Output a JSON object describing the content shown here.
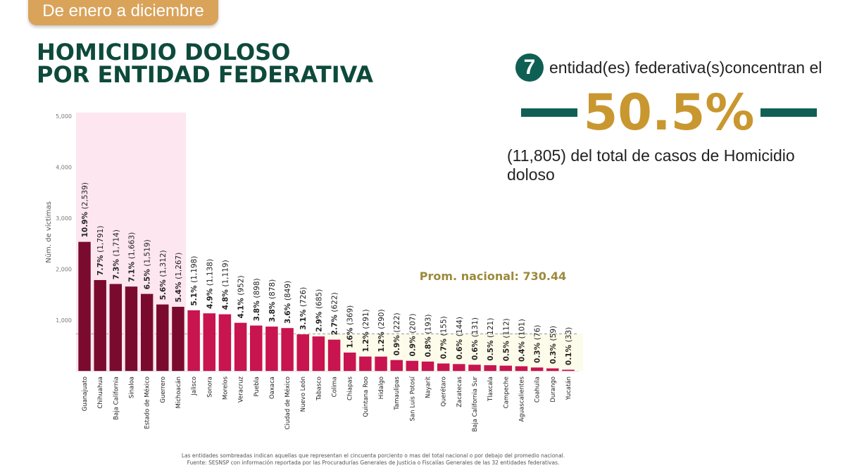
{
  "header": {
    "period": "De enero a diciembre",
    "title_line1": "HOMICIDIO DOLOSO",
    "title_line2": "POR ENTIDAD FEDERATIVA"
  },
  "summary": {
    "count": "7",
    "line1": "entidad(es) federativa(s)concentran el",
    "percent": "50.5%",
    "line3": "(11,805) del total de casos de Homicidio doloso"
  },
  "footnote": {
    "line1": "Las entidades sombreadas indican aquellas que representan el cincuenta porciento o mas del total nacional o por debajo del promedio nacional.",
    "line2": "Fuente: SESNSP con información reportada por las Procuradurías Generales de Justicia o Fiscalías Generales de las 32 entidades federativas."
  },
  "colors": {
    "top": "#7a0b2f",
    "rest": "#c8144f",
    "green": "#0e4a3b",
    "gold": "#c9972f",
    "top_shade": "#fde6f0",
    "below_avg_shade": "#fdfbea"
  },
  "chart_data": {
    "type": "bar",
    "ylabel": "Núm. de víctimas",
    "ylim": [
      0,
      5000
    ],
    "yticks": [
      "1,000",
      "2,000",
      "3,000",
      "4,000",
      "5,000"
    ],
    "average": {
      "label": "Prom. nacional: 730.44",
      "value": 730.44
    },
    "highlight_top_count": 7,
    "categories": [
      "Guanajuato",
      "Chihuahua",
      "Baja California",
      "Sinaloa",
      "Estado de México",
      "Guerrero",
      "Michoacán",
      "Jalisco",
      "Sonora",
      "Morelos",
      "Veracruz",
      "Puebla",
      "Oaxaca",
      "Ciudad de México",
      "Nuevo León",
      "Tabasco",
      "Colima",
      "Chiapas",
      "Quintana Roo",
      "Hidalgo",
      "Tamaulipas",
      "San Luis Potosí",
      "Nayarit",
      "Querétaro",
      "Zacatecas",
      "Baja California Sur",
      "Tlaxcala",
      "Campeche",
      "Aguascalientes",
      "Coahuila",
      "Durango",
      "Yucatán"
    ],
    "values": [
      2539,
      1791,
      1714,
      1663,
      1519,
      1312,
      1267,
      1198,
      1138,
      1119,
      952,
      898,
      878,
      849,
      726,
      685,
      622,
      369,
      291,
      290,
      222,
      207,
      193,
      155,
      144,
      131,
      121,
      112,
      101,
      76,
      59,
      33
    ],
    "percent_labels": [
      "10.9%",
      "7.7%",
      "7.3%",
      "7.1%",
      "6.5%",
      "5.6%",
      "5.4%",
      "5.1%",
      "4.9%",
      "4.8%",
      "4.1%",
      "3.8%",
      "3.8%",
      "3.6%",
      "3.1%",
      "2.9%",
      "2.7%",
      "1.6%",
      "1.2%",
      "1.2%",
      "0.9%",
      "0.9%",
      "0.8%",
      "0.7%",
      "0.6%",
      "0.6%",
      "0.5%",
      "0.5%",
      "0.4%",
      "0.3%",
      "0.3%",
      "0.1%"
    ],
    "count_labels": [
      "(2,539)",
      "(1,791)",
      "(1,714)",
      "(1,663)",
      "(1,519)",
      "(1,312)",
      "(1,267)",
      "(1,198)",
      "(1,138)",
      "(1,119)",
      "(952)",
      "(898)",
      "(878)",
      "(849)",
      "(726)",
      "(685)",
      "(622)",
      "(369)",
      "(291)",
      "(290)",
      "(222)",
      "(207)",
      "(193)",
      "(155)",
      "(144)",
      "(131)",
      "(121)",
      "(112)",
      "(101)",
      "(76)",
      "(59)",
      "(33)"
    ]
  }
}
